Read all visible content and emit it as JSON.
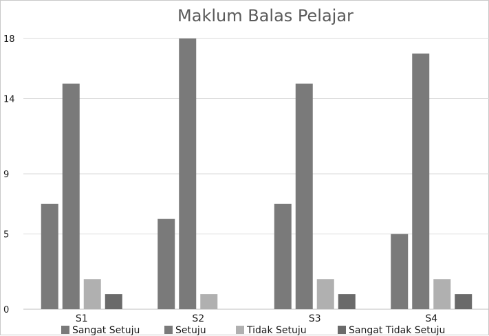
{
  "chart_data": {
    "type": "bar",
    "title": "Maklum Balas Pelajar",
    "xlabel": "",
    "ylabel": "",
    "categories": [
      "S1",
      "S2",
      "S3",
      "S4"
    ],
    "yticks": [
      0,
      5,
      9,
      14,
      18
    ],
    "ylim": [
      0,
      18
    ],
    "grid": true,
    "legend_position": "bottom",
    "series": [
      {
        "name": "Sangat Setuju",
        "color": "#7a7a7a",
        "values": [
          7,
          6,
          7,
          5
        ]
      },
      {
        "name": "Setuju",
        "color": "#7a7a7a",
        "values": [
          15,
          18,
          15,
          17
        ]
      },
      {
        "name": "Tidak Setuju",
        "color": "#b0b0b0",
        "values": [
          2,
          1,
          2,
          2
        ]
      },
      {
        "name": "Sangat Tidak Setuju",
        "color": "#6a6a6a",
        "values": [
          1,
          0,
          1,
          1
        ]
      }
    ]
  }
}
